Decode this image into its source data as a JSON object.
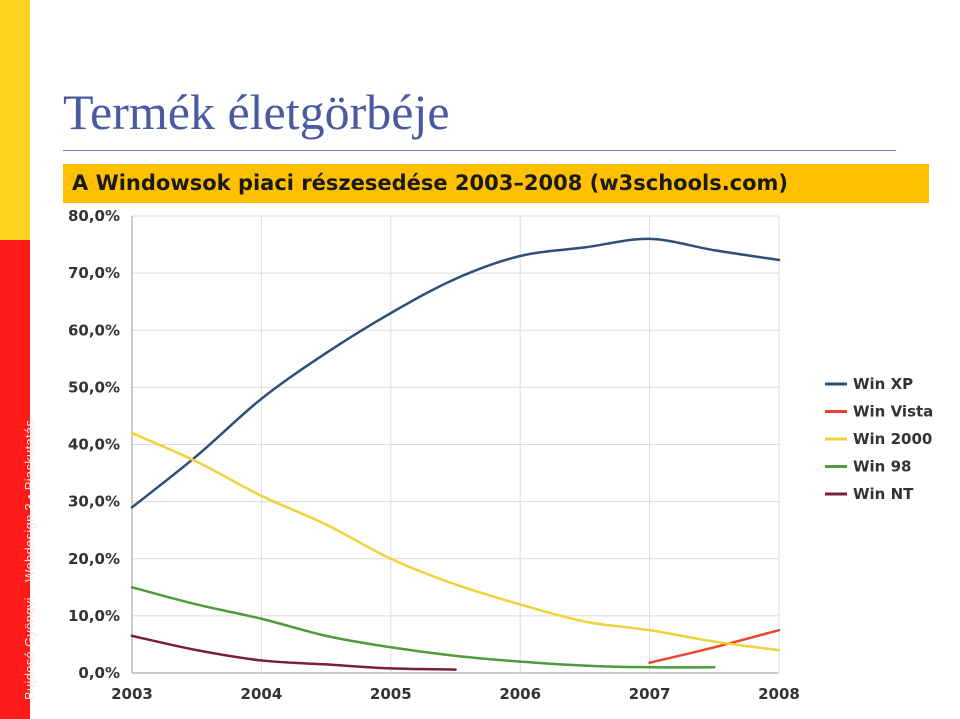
{
  "slide": {
    "title": "Termék életgörbéje",
    "subtitle": "A Windowsok piaci részesedése 2003–2008 (w3schools.com)",
    "sidebar_text": "Bujdosó Gyöngyi – Webdesign 3 • Piackutatás"
  },
  "colors": {
    "title": "#4a5aa0",
    "subtitle_bar": "#ffc000",
    "side_yellow": "#ffd21f",
    "side_red": "#ff1a1a"
  },
  "chart_data": {
    "type": "line",
    "y_ticks": [
      "0,0%",
      "10,0%",
      "20,0%",
      "30,0%",
      "40,0%",
      "50,0%",
      "60,0%",
      "70,0%",
      "80,0%"
    ],
    "x_ticks": [
      "2003",
      "2004",
      "2005",
      "2006",
      "2007",
      "2008"
    ],
    "xlim": [
      2003,
      2008
    ],
    "ylim": [
      0,
      80
    ],
    "grid": true,
    "legend_position": "right",
    "series": [
      {
        "name": "Win XP",
        "color": "#2e4f7a",
        "x": [
          2003,
          2003.5,
          2004,
          2004.5,
          2005,
          2005.5,
          2006,
          2006.5,
          2007,
          2007.5,
          2008
        ],
        "y": [
          29.0,
          38.0,
          48.0,
          56.0,
          63.0,
          69.0,
          73.0,
          74.5,
          76.0,
          74.0,
          72.3
        ]
      },
      {
        "name": "Win Vista",
        "color": "#e8472e",
        "x": [
          2007,
          2007.5,
          2008
        ],
        "y": [
          1.8,
          4.5,
          7.5
        ]
      },
      {
        "name": "Win 2000",
        "color": "#f2d23a",
        "x": [
          2003,
          2003.5,
          2004,
          2004.5,
          2005,
          2005.5,
          2006,
          2006.5,
          2007,
          2007.5,
          2008
        ],
        "y": [
          42.0,
          37.0,
          31.0,
          26.0,
          20.0,
          15.5,
          12.0,
          9.0,
          7.5,
          5.5,
          4.0
        ]
      },
      {
        "name": "Win 98",
        "color": "#4f9a3a",
        "x": [
          2003,
          2003.5,
          2004,
          2004.5,
          2005,
          2005.5,
          2006,
          2006.5,
          2007,
          2007.5
        ],
        "y": [
          15.0,
          12.0,
          9.5,
          6.5,
          4.5,
          3.0,
          2.0,
          1.3,
          1.0,
          1.0
        ]
      },
      {
        "name": "Win NT",
        "color": "#7a1f3a",
        "x": [
          2003,
          2003.5,
          2004,
          2004.5,
          2005,
          2005.5
        ],
        "y": [
          6.5,
          4.0,
          2.2,
          1.5,
          0.8,
          0.6
        ]
      }
    ]
  }
}
